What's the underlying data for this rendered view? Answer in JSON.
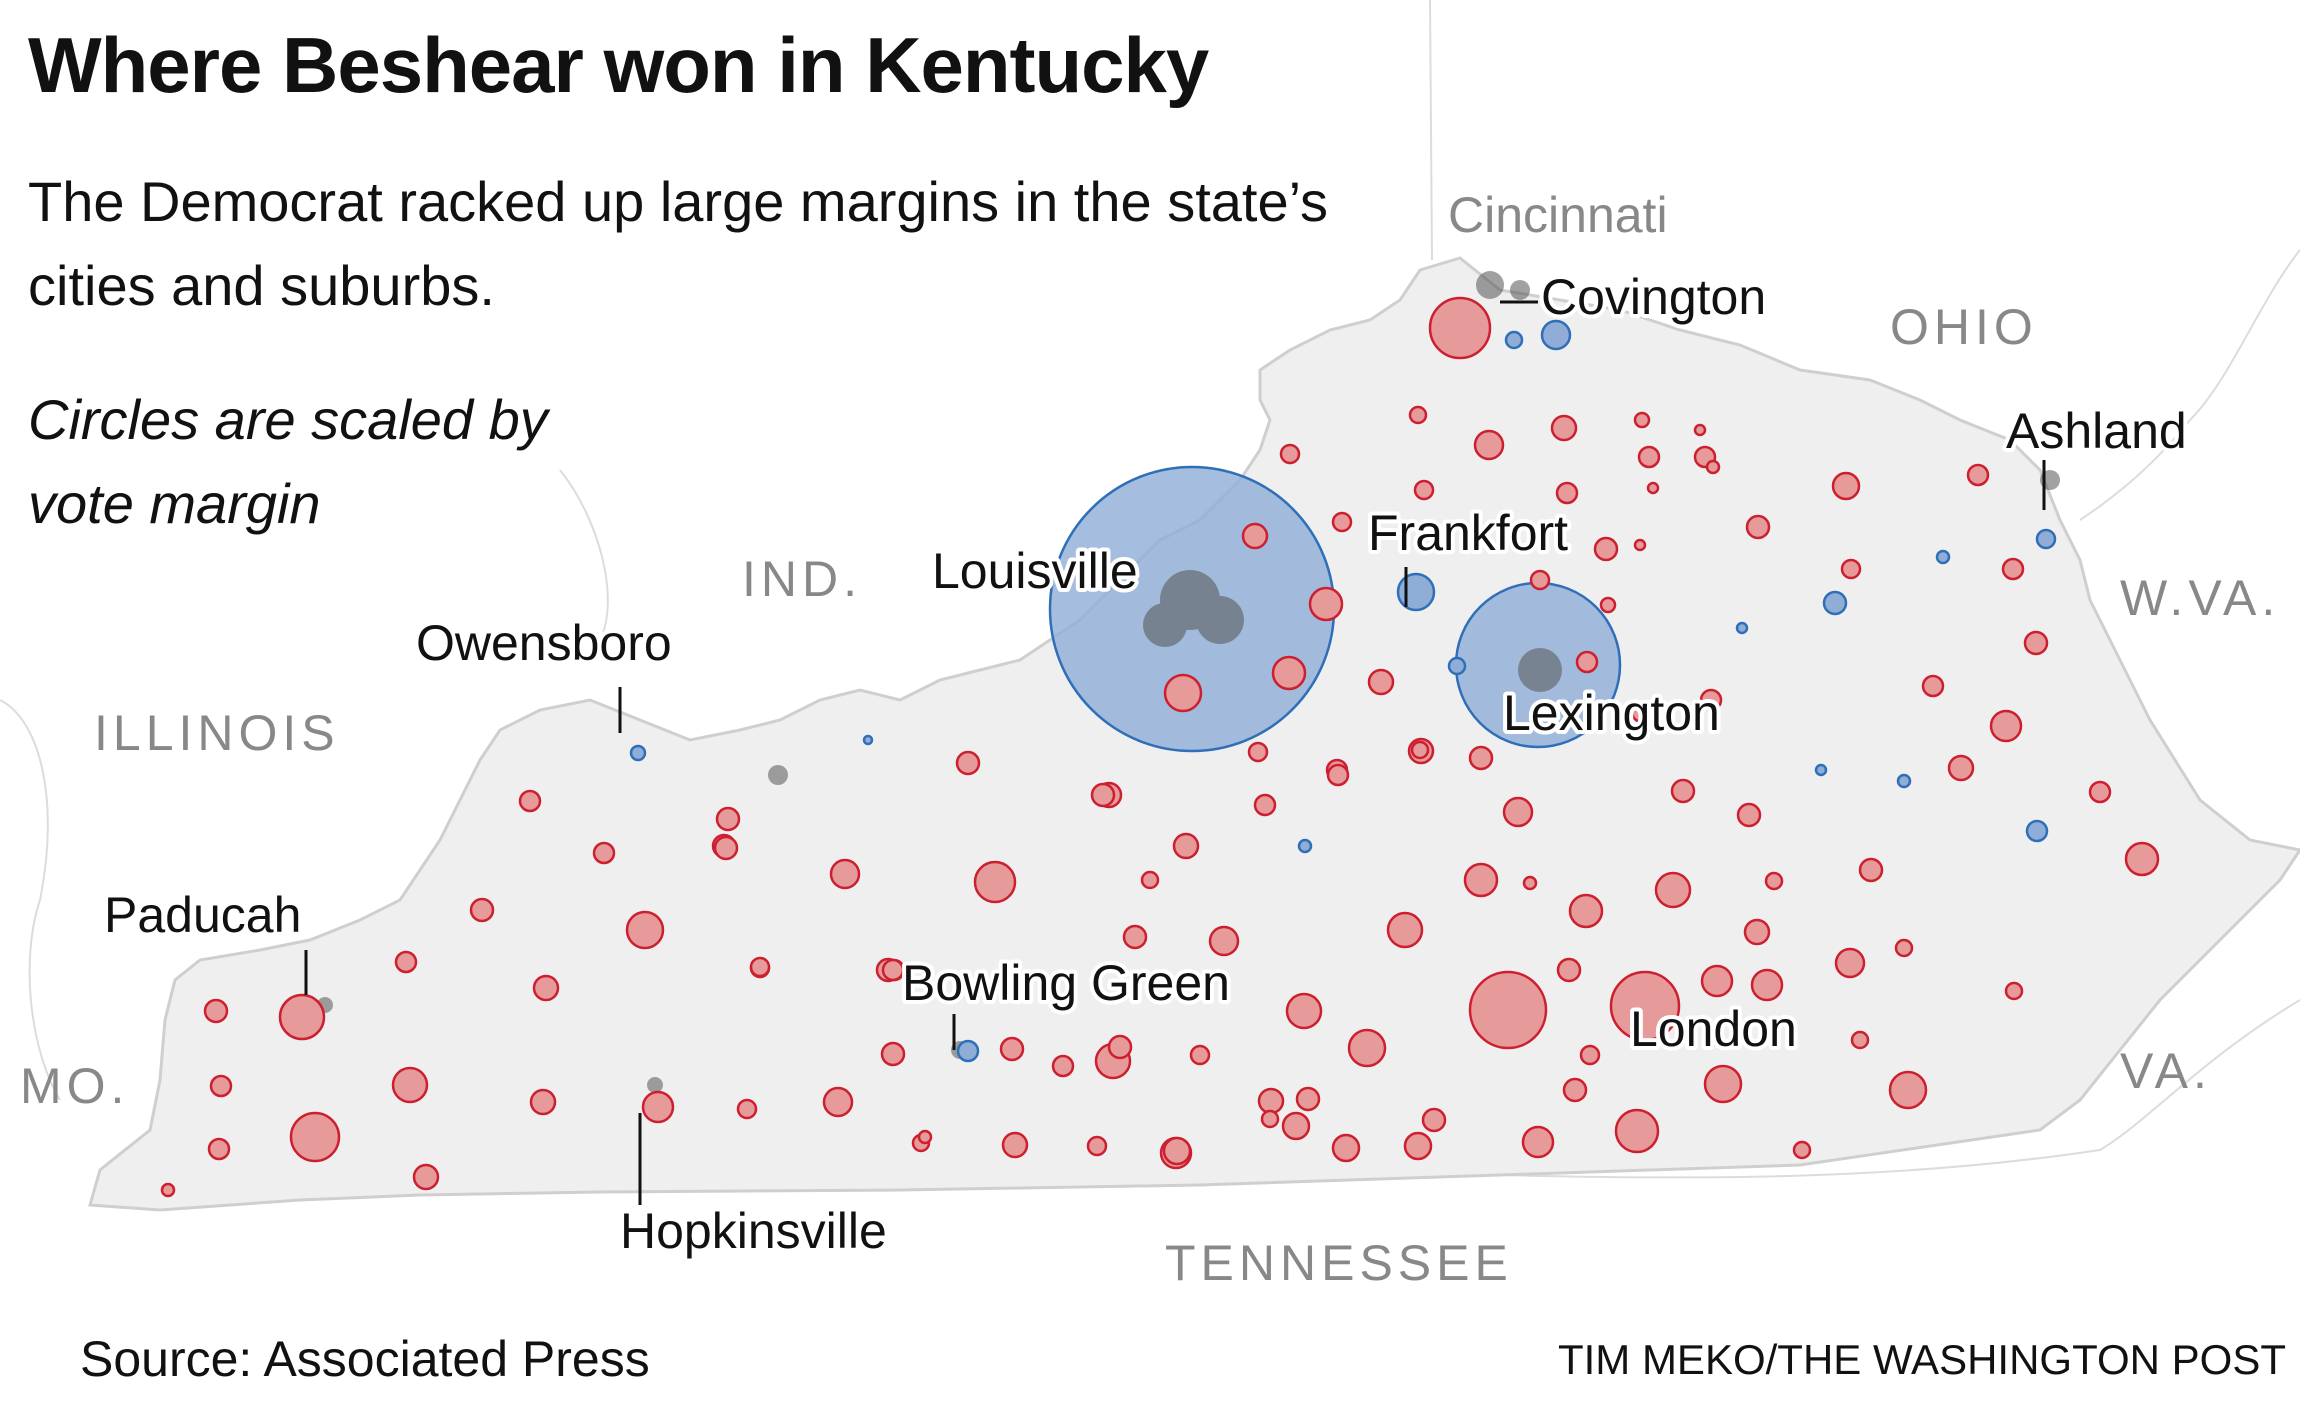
{
  "title": "Where Beshear won in Kentucky",
  "dek": "The Democrat racked up large margins in the state’s cities and suburbs.",
  "note": "Circles are scaled by vote margin",
  "source": "Source: Associated Press",
  "credit": "TIM MEKO/THE WASHINGTON POST",
  "colors": {
    "democrat": "#2f6fb8",
    "democrat_fill": "#8fadd6",
    "republican": "#cc1f2f",
    "republican_fill": "#e69a9a",
    "state_fill": "#eeeeee",
    "border": "#cfcfcf",
    "label_gray": "#777777"
  },
  "neighbors": [
    "OHIO",
    "IND.",
    "ILLINOIS",
    "W.VA.",
    "MO.",
    "VA.",
    "TENNESSEE",
    "Cincinnati"
  ],
  "cities": [
    "Louisville",
    "Lexington",
    "Frankfort",
    "Covington",
    "Ashland",
    "Owensboro",
    "Paducah",
    "Bowling Green",
    "London",
    "Hopkinsville"
  ]
}
